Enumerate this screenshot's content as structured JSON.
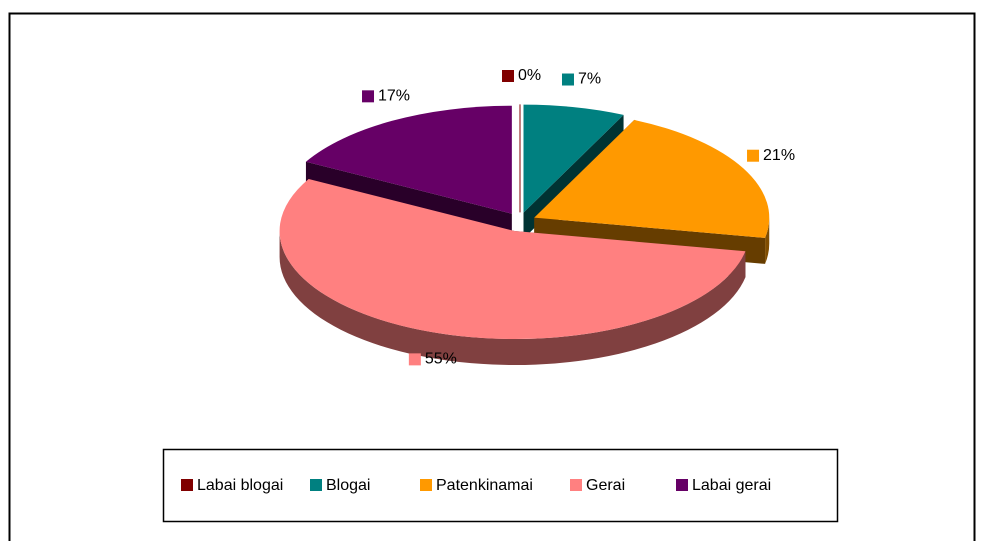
{
  "chart_data": {
    "type": "pie",
    "categories": [
      "Labai blogai",
      "Blogai",
      "Patenkinamai",
      "Gerai",
      "Labai gerai"
    ],
    "values": [
      0,
      7,
      21,
      55,
      17
    ],
    "value_labels": [
      "0%",
      "7%",
      "21%",
      "55%",
      "17%"
    ],
    "colors": [
      "#800000",
      "#008080",
      "#ff9900",
      "#ff8080",
      "#660066"
    ],
    "legend": "bottom"
  }
}
